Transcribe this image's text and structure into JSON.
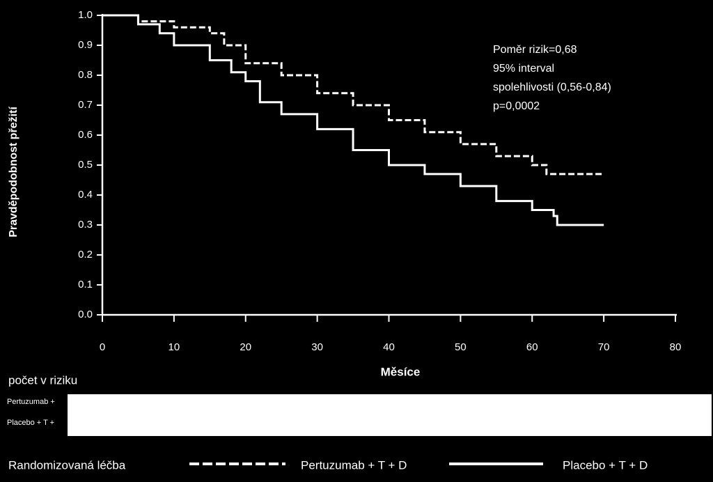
{
  "chart_data": {
    "type": "line",
    "step": true,
    "x_label": "Měsíce",
    "y_label": "Pravděpodobnost přežití",
    "xlim": [
      0,
      80
    ],
    "xticks": [
      0,
      10,
      20,
      30,
      40,
      50,
      60,
      70,
      80
    ],
    "ylim": [
      0,
      1
    ],
    "yticks": [
      {
        "value": 0,
        "label": "0.0"
      },
      0.1,
      0.2,
      0.3,
      0.4,
      0.5,
      0.6,
      0.7,
      0.8,
      0.9,
      {
        "value": 1,
        "label": "1.0"
      }
    ],
    "annotations": [
      "Poměr rizik=0,68",
      "95% interval",
      "spolehlivosti (0,56-0,84)",
      "p=0,0002"
    ],
    "series": [
      {
        "name": "Pertuzumab + T + D",
        "color": "#ffffff",
        "dash": "dashed",
        "x": [
          0,
          5,
          10,
          15,
          17,
          20,
          25,
          30,
          35,
          40,
          45,
          50,
          55,
          60,
          62,
          70
        ],
        "values": [
          1.0,
          0.98,
          0.96,
          0.94,
          0.9,
          0.84,
          0.8,
          0.74,
          0.7,
          0.65,
          0.61,
          0.57,
          0.53,
          0.5,
          0.47,
          0.47
        ]
      },
      {
        "name": "Placebo + T + D",
        "color": "#ffffff",
        "dash": "solid",
        "x": [
          0,
          5,
          8,
          10,
          15,
          18,
          20,
          22,
          25,
          30,
          35,
          40,
          45,
          50,
          55,
          60,
          63,
          63.5,
          70
        ],
        "values": [
          1.0,
          0.97,
          0.94,
          0.9,
          0.85,
          0.81,
          0.78,
          0.71,
          0.67,
          0.62,
          0.55,
          0.5,
          0.47,
          0.43,
          0.38,
          0.35,
          0.33,
          0.3,
          0.3
        ]
      }
    ],
    "risk_table": {
      "title": "počet v riziku",
      "rows": [
        "Pertuzumab +",
        "Placebo + T +"
      ]
    },
    "legend_title": "Randomizovaná léčba"
  }
}
